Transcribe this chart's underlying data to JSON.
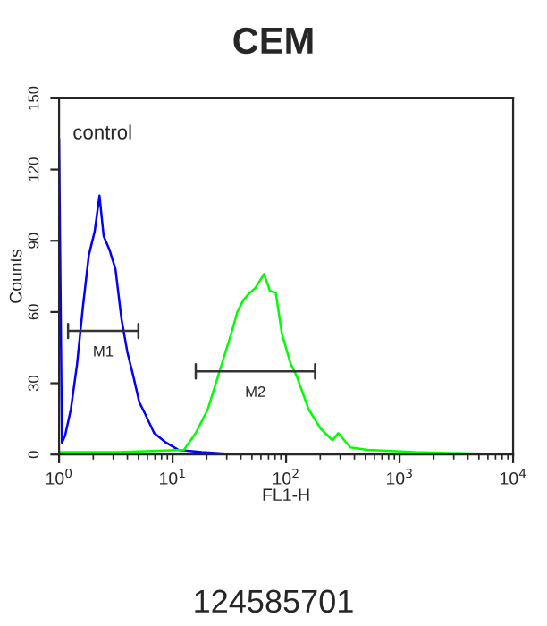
{
  "chart_data": {
    "type": "line",
    "title": "CEM",
    "xlabel": "FL1-H",
    "ylabel": "Counts",
    "log": "x",
    "xlim": [
      1,
      10000
    ],
    "ylim": [
      0,
      150
    ],
    "xticks": [
      {
        "value": 1,
        "label": "10$^{0}$"
      },
      {
        "value": 10,
        "label": "10$^{1}$"
      },
      {
        "value": 100,
        "label": "10$^{2}$"
      },
      {
        "value": 1000,
        "label": "10$^{3}$"
      },
      {
        "value": 10000,
        "label": "10$^{4}$"
      }
    ],
    "yticks": [
      0,
      30,
      60,
      90,
      120,
      150
    ],
    "grid": false,
    "legend": false,
    "series": [
      {
        "color": "#0000ff",
        "x": [
          1,
          1.06,
          1.13,
          1.27,
          1.44,
          1.62,
          1.83,
          2.06,
          2.27,
          2.47,
          2.79,
          3.14,
          3.55,
          4.0,
          4.51,
          5.09,
          5.74,
          6.88,
          8.76,
          11.2,
          18.0,
          37.2,
          10000
        ],
        "values": [
          133,
          5,
          8,
          19,
          38,
          62,
          84,
          94,
          109,
          92,
          86,
          78,
          57,
          43,
          33,
          22,
          17,
          9,
          5,
          2,
          1,
          0,
          0
        ]
      },
      {
        "color": "#00ff00",
        "x": [
          1,
          3.34,
          12.6,
          16.0,
          20.4,
          25.9,
          32.9,
          37.2,
          42.0,
          47.5,
          53.4,
          63.9,
          72.0,
          81.2,
          91.7,
          110,
          124,
          158,
          201,
          256,
          288,
          368,
          524,
          1380,
          10000
        ],
        "values": [
          1,
          1,
          2,
          9,
          19,
          35,
          51,
          60,
          65,
          68,
          70,
          76,
          69,
          68,
          51,
          38,
          33,
          19,
          11,
          6,
          9,
          3,
          2,
          1,
          0
        ]
      },
      {
        "name": "M1",
        "color": "#333333",
        "x": [
          1.2,
          1.2,
          1.2,
          5,
          5,
          5
        ],
        "values": [
          55,
          49,
          52,
          52,
          55,
          49
        ]
      },
      {
        "name": "M2",
        "color": "#333333",
        "x": [
          16,
          16,
          16,
          180,
          180,
          180
        ],
        "values": [
          38,
          32,
          35,
          35,
          38,
          32
        ]
      }
    ],
    "annotations": [
      "control",
      "124585701"
    ]
  }
}
